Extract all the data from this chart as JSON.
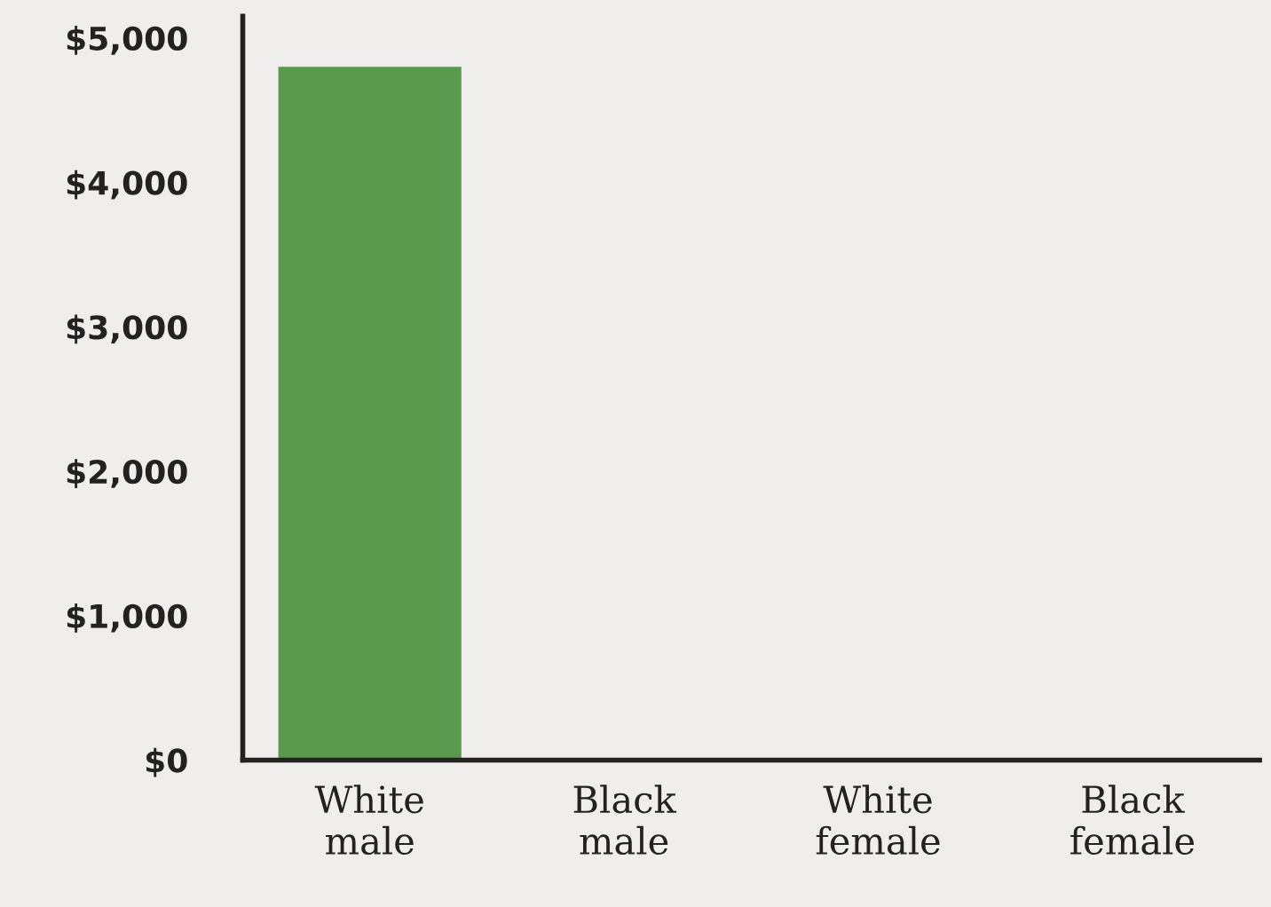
{
  "chart_data": {
    "type": "bar",
    "categories": [
      "White\nmale",
      "Black\nmale",
      "White\nfemale",
      "Black\nfemale"
    ],
    "values": [
      4800,
      null,
      null,
      null
    ],
    "color": "#5a9a4f",
    "ylim": [
      0,
      5150
    ],
    "yticks": [
      {
        "value": 0,
        "label": "$0"
      },
      {
        "value": 1000,
        "label": "$1,000"
      },
      {
        "value": 2000,
        "label": "$2,000"
      },
      {
        "value": 3000,
        "label": "$3,000"
      },
      {
        "value": 4000,
        "label": "$4,000"
      },
      {
        "value": 5000,
        "label": "$5,000"
      }
    ],
    "grid": false
  }
}
